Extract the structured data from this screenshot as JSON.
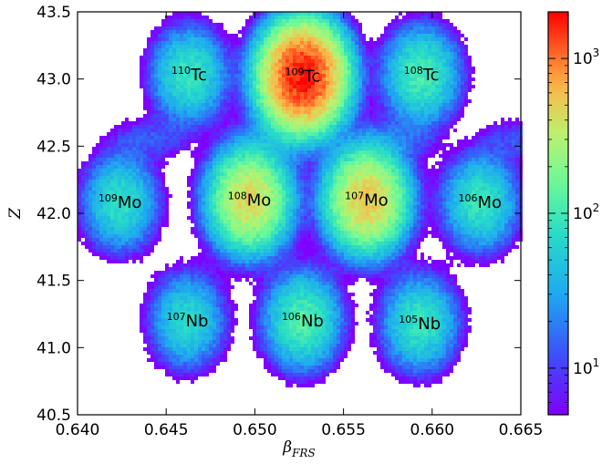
{
  "chart_data": {
    "type": "heatmap",
    "title": "",
    "xlabel": "β",
    "xlabel_sub": "FRS",
    "ylabel": "Z",
    "xlim": [
      0.64,
      0.665
    ],
    "ylim": [
      40.5,
      43.5
    ],
    "x_ticks": [
      {
        "value": 0.64,
        "label": "0.640"
      },
      {
        "value": 0.645,
        "label": "0.645"
      },
      {
        "value": 0.65,
        "label": "0.650"
      },
      {
        "value": 0.655,
        "label": "0.655"
      },
      {
        "value": 0.66,
        "label": "0.660"
      },
      {
        "value": 0.665,
        "label": "0.665"
      }
    ],
    "y_ticks": [
      {
        "value": 40.5,
        "label": "40.5"
      },
      {
        "value": 41.0,
        "label": "41.0"
      },
      {
        "value": 41.5,
        "label": "41.5"
      },
      {
        "value": 42.0,
        "label": "42.0"
      },
      {
        "value": 42.5,
        "label": "42.5"
      },
      {
        "value": 43.0,
        "label": "43.0"
      },
      {
        "value": 43.5,
        "label": "43.5"
      }
    ],
    "colorbar": {
      "scale": "log",
      "range": [
        5,
        2000
      ],
      "colormap": "rainbow",
      "ticks": [
        {
          "value": 10,
          "base": "10",
          "exp": "1"
        },
        {
          "value": 100,
          "base": "10",
          "exp": "2"
        },
        {
          "value": 1000,
          "base": "10",
          "exp": "3"
        }
      ]
    },
    "clusters": [
      {
        "mass": "110",
        "element": "Tc",
        "x": 0.6463,
        "y": 43.03,
        "peak": 90
      },
      {
        "mass": "109",
        "element": "Tc",
        "x": 0.6527,
        "y": 43.02,
        "peak": 1800
      },
      {
        "mass": "108",
        "element": "Tc",
        "x": 0.6594,
        "y": 43.03,
        "peak": 110
      },
      {
        "mass": "109",
        "element": "Mo",
        "x": 0.6424,
        "y": 42.08,
        "peak": 80
      },
      {
        "mass": "108",
        "element": "Mo",
        "x": 0.6497,
        "y": 42.1,
        "peak": 450
      },
      {
        "mass": "107",
        "element": "Mo",
        "x": 0.6563,
        "y": 42.1,
        "peak": 550
      },
      {
        "mass": "106",
        "element": "Mo",
        "x": 0.6627,
        "y": 42.08,
        "peak": 90
      },
      {
        "mass": "107",
        "element": "Nb",
        "x": 0.6462,
        "y": 41.2,
        "peak": 70
      },
      {
        "mass": "106",
        "element": "Nb",
        "x": 0.6527,
        "y": 41.2,
        "peak": 120
      },
      {
        "mass": "105",
        "element": "Nb",
        "x": 0.6593,
        "y": 41.18,
        "peak": 90
      }
    ]
  }
}
